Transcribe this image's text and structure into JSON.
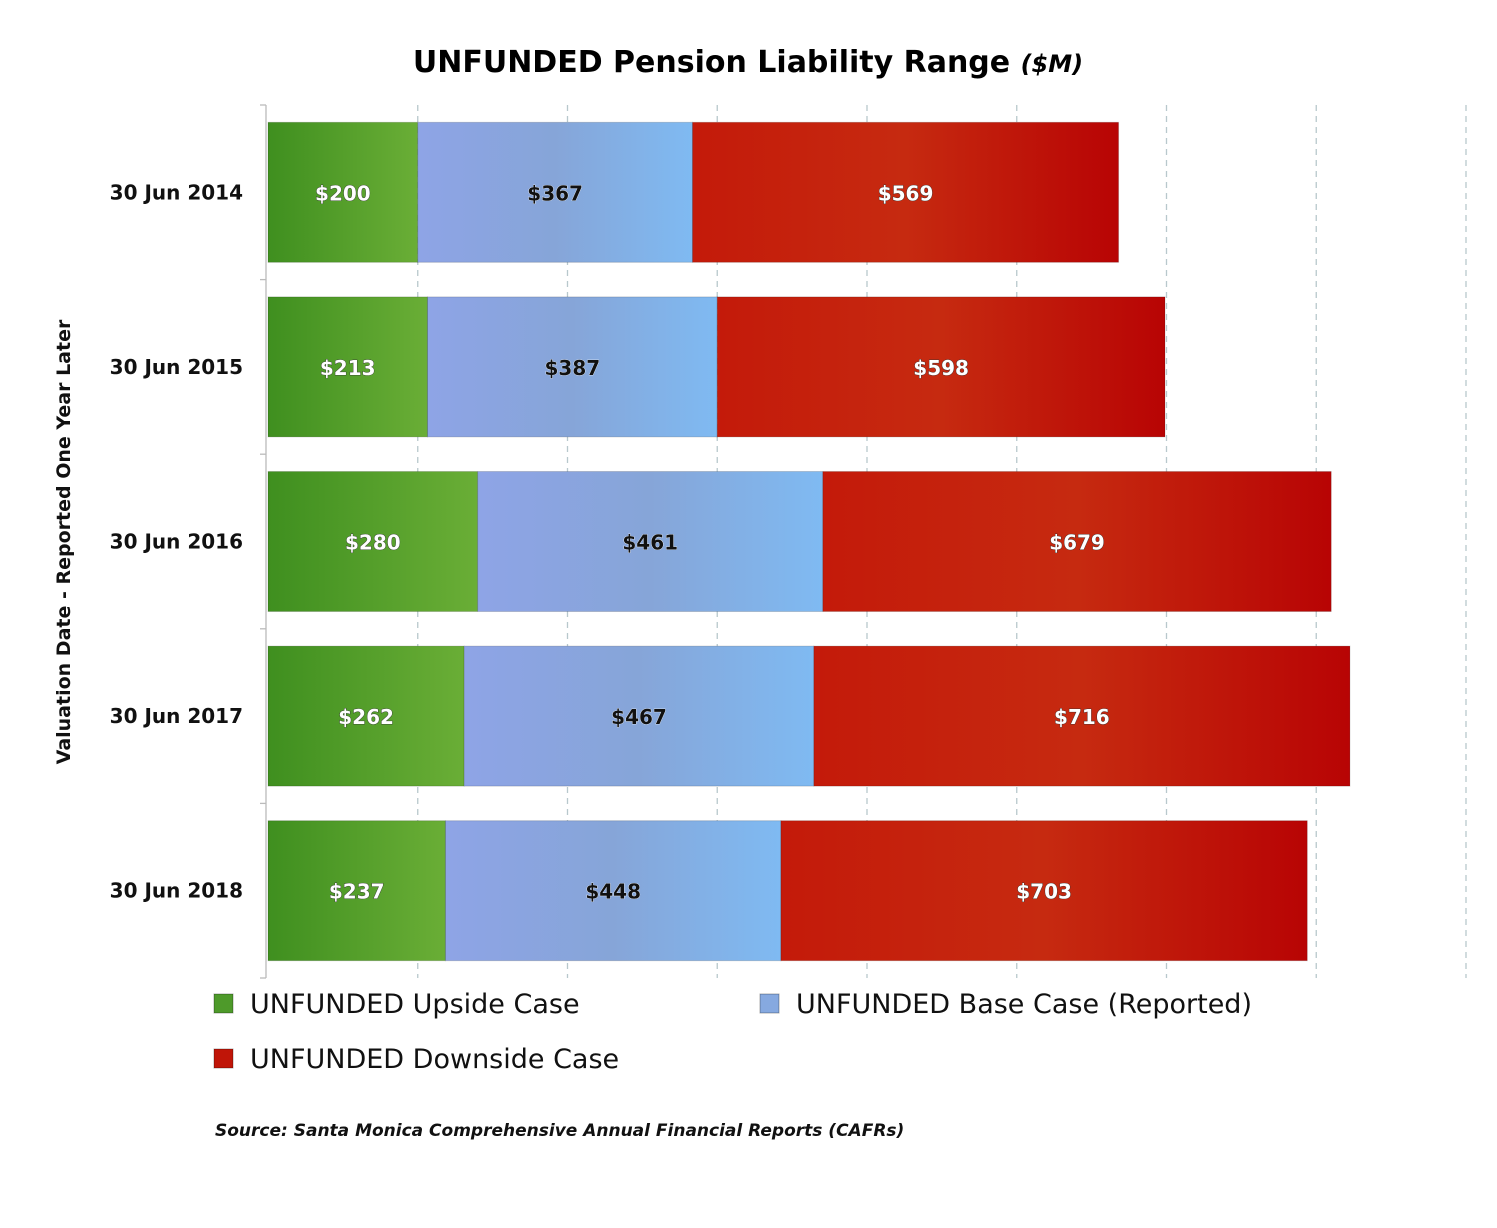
{
  "chart_data": {
    "type": "bar",
    "orientation": "horizontal",
    "stacked": true,
    "title": "UNFUNDED Pension Liability Range",
    "title_unit": "($M)",
    "ylabel": "Valuation Date - Reported One Year Later",
    "xlabel": "",
    "xlim": [
      0,
      1600
    ],
    "x_grid_step": 200,
    "grid": true,
    "categories": [
      "30 Jun 2014",
      "30 Jun 2015",
      "30 Jun 2016",
      "30 Jun 2017",
      "30 Jun 2018"
    ],
    "series": [
      {
        "name": "UNFUNDED Upside Case",
        "color": "#4e9a2a",
        "values": [
          200,
          213,
          280,
          262,
          237
        ],
        "labels": [
          "$200",
          "$213",
          "$280",
          "$262",
          "$237"
        ]
      },
      {
        "name": "UNFUNDED Base Case (Reported)",
        "color": "#86a9e0",
        "values": [
          367,
          387,
          461,
          467,
          448
        ],
        "labels": [
          "$367",
          "$387",
          "$461",
          "$467",
          "$448"
        ]
      },
      {
        "name": "UNFUNDED Downside Case",
        "color": "#c01508",
        "values": [
          569,
          598,
          679,
          716,
          703
        ],
        "labels": [
          "$569",
          "$598",
          "$679",
          "$716",
          "$703"
        ]
      }
    ],
    "legend_position": "bottom",
    "source": "Source: Santa Monica Comprehensive Annual Financial Reports (CAFRs)"
  }
}
